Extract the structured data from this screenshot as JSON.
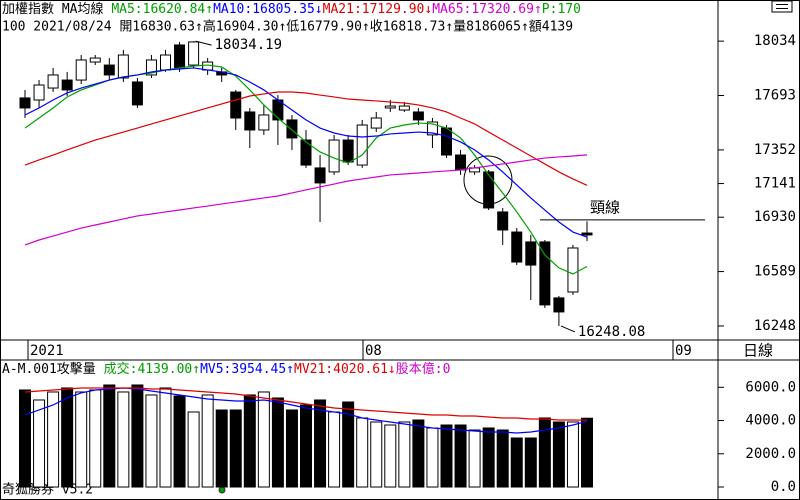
{
  "chart_data": [
    {
      "type": "candlestick",
      "header": [
        {
          "text": "加權指數 MA均線 ",
          "color": "#000000"
        },
        {
          "text": "MA5:16620.84↑",
          "color": "#00a000"
        },
        {
          "text": "MA10:16805.35↓",
          "color": "#0000ff"
        },
        {
          "text": "MA21:17129.90↓",
          "color": "#e00000"
        },
        {
          "text": "MA65:17320.69↑",
          "color": "#d000d0"
        },
        {
          "text": "P:170",
          "color": "#00a000"
        }
      ],
      "info": "100 2021/08/24 開16830.63↑高16904.30↑低16779.90↑收16818.73↑量8186065↑額4139",
      "open": [
        17678,
        17665,
        17740,
        17790,
        17790,
        17903,
        17884,
        17803,
        17778,
        17822,
        17853,
        18010,
        17884,
        17853,
        17841,
        17715,
        17590,
        17477,
        17665,
        17540,
        17414,
        17239,
        17214,
        17414,
        17257,
        17489,
        17615,
        17602,
        17590,
        17446,
        17489,
        17320,
        17214,
        17214,
        16963,
        16837,
        16775,
        16775,
        16424,
        16461,
        16830.63
      ],
      "high": [
        17728,
        17790,
        17866,
        17841,
        17947,
        17947,
        17928,
        17979,
        17803,
        17947,
        17979,
        18029,
        18034.19,
        17928,
        17866,
        17728,
        17615,
        17634,
        17696,
        17571,
        17477,
        17320,
        17446,
        17446,
        17540,
        17590,
        17665,
        17652,
        17615,
        17552,
        17508,
        17352,
        17257,
        17226,
        16988,
        16862,
        16819,
        16787,
        16436,
        16756,
        16904.3
      ],
      "low": [
        17552,
        17615,
        17715,
        17690,
        17765,
        17884,
        17790,
        17778,
        17615,
        17803,
        17841,
        17841,
        17866,
        17822,
        17778,
        17477,
        17364,
        17446,
        17383,
        17352,
        17239,
        16900,
        17195,
        17257,
        17239,
        17464,
        17590,
        17590,
        17508,
        17364,
        17301,
        17195,
        17195,
        16975,
        16756,
        16630,
        16411,
        16361,
        16248.08,
        16442,
        16779.9
      ],
      "close": [
        17615,
        17759,
        17822,
        17728,
        17916,
        17928,
        17822,
        17947,
        17634,
        17916,
        17947,
        17866,
        18029,
        17903,
        17822,
        17552,
        17477,
        17571,
        17540,
        17427,
        17257,
        17145,
        17414,
        17276,
        17508,
        17552,
        17627,
        17627,
        17540,
        17527,
        17320,
        17226,
        17239,
        16988,
        16850,
        16649,
        16630,
        16380,
        16336,
        16737,
        16818.73
      ],
      "up_color": "#ffffff",
      "down_color": "#000000",
      "series": [
        {
          "color": "#00a000",
          "values": [
            17489,
            17552,
            17615,
            17684,
            17728,
            17759,
            17790,
            17809,
            17822,
            17834,
            17853,
            17866,
            17878,
            17884,
            17872,
            17815,
            17728,
            17634,
            17552,
            17477,
            17402,
            17339,
            17301,
            17270,
            17320,
            17427,
            17489,
            17508,
            17521,
            17515,
            17489,
            17427,
            17320,
            17195,
            17082,
            16963,
            16837,
            16693,
            16612,
            16574,
            16620.84
          ]
        },
        {
          "color": "#0000ff",
          "values": [
            17571,
            17615,
            17665,
            17709,
            17740,
            17765,
            17790,
            17809,
            17822,
            17841,
            17853,
            17859,
            17866,
            17853,
            17841,
            17822,
            17778,
            17728,
            17665,
            17602,
            17540,
            17489,
            17458,
            17439,
            17433,
            17439,
            17452,
            17458,
            17464,
            17458,
            17439,
            17402,
            17352,
            17289,
            17214,
            17132,
            17051,
            16975,
            16900,
            16837,
            16805.35
          ]
        },
        {
          "color": "#e00000",
          "values": [
            17257,
            17289,
            17320,
            17352,
            17383,
            17414,
            17439,
            17464,
            17489,
            17515,
            17540,
            17565,
            17590,
            17615,
            17640,
            17665,
            17690,
            17703,
            17715,
            17715,
            17709,
            17696,
            17684,
            17671,
            17665,
            17659,
            17652,
            17646,
            17634,
            17615,
            17590,
            17552,
            17515,
            17464,
            17414,
            17364,
            17314,
            17264,
            17214,
            17170,
            17129.9
          ]
        },
        {
          "color": "#d000d0",
          "values": [
            16756,
            16787,
            16812,
            16837,
            16862,
            16881,
            16900,
            16919,
            16938,
            16950,
            16963,
            16975,
            16988,
            17000,
            17013,
            17025,
            17038,
            17051,
            17063,
            17082,
            17101,
            17120,
            17138,
            17157,
            17170,
            17182,
            17195,
            17201,
            17207,
            17214,
            17220,
            17226,
            17239,
            17251,
            17264,
            17276,
            17289,
            17301,
            17308,
            17314,
            17320.69
          ]
        }
      ],
      "ylim": [
        16160,
        18292
      ],
      "yticks": [
        16248,
        16589,
        16930,
        17141,
        17352,
        17693,
        18034
      ],
      "max_label": "18034.19",
      "min_label": "16248.08",
      "neckline": {
        "text": "頸線",
        "value": 16913
      },
      "x_labels": [
        "2021",
        "08",
        "09"
      ],
      "period": "日線"
    },
    {
      "type": "bar",
      "header": [
        {
          "text": "A-M.001攻擊量 ",
          "color": "#000000"
        },
        {
          "text": "成交:4139.00↑",
          "color": "#00a000"
        },
        {
          "text": "MV5:3954.45↑",
          "color": "#0000ff"
        },
        {
          "text": "MV21:4020.61↓",
          "color": "#e00000"
        },
        {
          "text": "股本億:0",
          "color": "#d000d0"
        }
      ],
      "values": [
        5839,
        5237,
        5719,
        5960,
        5719,
        5839,
        6140,
        5719,
        6140,
        5538,
        5960,
        5478,
        4515,
        5538,
        4635,
        4635,
        5538,
        5719,
        5358,
        4635,
        4936,
        5237,
        4515,
        5117,
        4154,
        3913,
        3732,
        3913,
        4033,
        3552,
        3732,
        3732,
        3431,
        3552,
        3431,
        2950,
        2950,
        4154,
        3913,
        3913,
        4139
      ],
      "series": [
        {
          "color": "#0000ff",
          "values": [
            4334,
            4635,
            4936,
            5358,
            5659,
            5839,
            5900,
            5960,
            5900,
            5779,
            5659,
            5538,
            5418,
            5298,
            5237,
            5177,
            5177,
            5237,
            5117,
            4936,
            4756,
            4635,
            4515,
            4395,
            4154,
            4033,
            3913,
            3793,
            3672,
            3552,
            3492,
            3431,
            3371,
            3311,
            3311,
            3251,
            3311,
            3431,
            3552,
            3732,
            3954.45
          ]
        },
        {
          "color": "#e00000",
          "values": [
            5719,
            5779,
            5839,
            5900,
            5960,
            5960,
            5960,
            5960,
            5960,
            5900,
            5900,
            5839,
            5779,
            5719,
            5659,
            5599,
            5478,
            5358,
            5237,
            5117,
            4997,
            4876,
            4756,
            4696,
            4635,
            4575,
            4515,
            4455,
            4395,
            4334,
            4334,
            4274,
            4274,
            4214,
            4154,
            4154,
            4094,
            4094,
            4033,
            4033,
            4020.61
          ]
        }
      ],
      "ylim": [
        -300,
        6500
      ],
      "yticks": [
        {
          "value": 0,
          "label": "0.0"
        },
        {
          "value": 2000,
          "label": "2000.0"
        },
        {
          "value": 4000,
          "label": "4000.0"
        },
        {
          "value": 6000,
          "label": "6000.0"
        }
      ]
    }
  ],
  "footer": "奇狐勝券 v5.2"
}
